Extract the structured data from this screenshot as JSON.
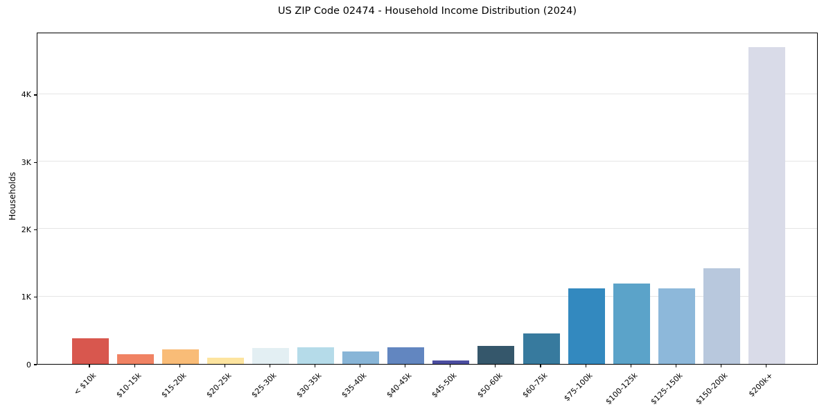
{
  "title": "US ZIP Code 02474 - Household Income Distribution (2024)",
  "chart_data": {
    "type": "bar",
    "title": "US ZIP Code 02474 - Household Income Distribution (2024)",
    "xlabel": "",
    "ylabel": "Households",
    "categories": [
      "< $10k",
      "$10-15k",
      "$15-20k",
      "$20-25k",
      "$25-30k",
      "$30-35k",
      "$35-40k",
      "$40-45k",
      "$45-50k",
      "$50-60k",
      "$60-75k",
      "$75-100k",
      "$100-125k",
      "$125-150k",
      "$150-200k",
      "$200k+"
    ],
    "values": [
      385,
      140,
      220,
      90,
      240,
      245,
      190,
      245,
      50,
      265,
      450,
      1120,
      1195,
      1125,
      1420,
      4700
    ],
    "bar_colors": [
      "#d8574e",
      "#f08263",
      "#f9bc77",
      "#fde49f",
      "#e3eff3",
      "#b5dbe9",
      "#88b5d7",
      "#6286c0",
      "#4b4da0",
      "#35576b",
      "#377a9e",
      "#3389bf",
      "#5ba3c9",
      "#8db8da",
      "#b8c8dd",
      "#d9dbe8"
    ],
    "ytick_labels": [
      "0",
      "1K",
      "2K",
      "3K",
      "4K"
    ],
    "ytick_values": [
      0,
      1000,
      2000,
      3000,
      4000
    ],
    "ylim": [
      0,
      4925
    ],
    "grid": "horizontal",
    "gridline_color": "#e5e5e5",
    "spine_color": "#000000",
    "background_color": "#ffffff",
    "legend": "none",
    "xtick_rotation_deg": 45
  }
}
